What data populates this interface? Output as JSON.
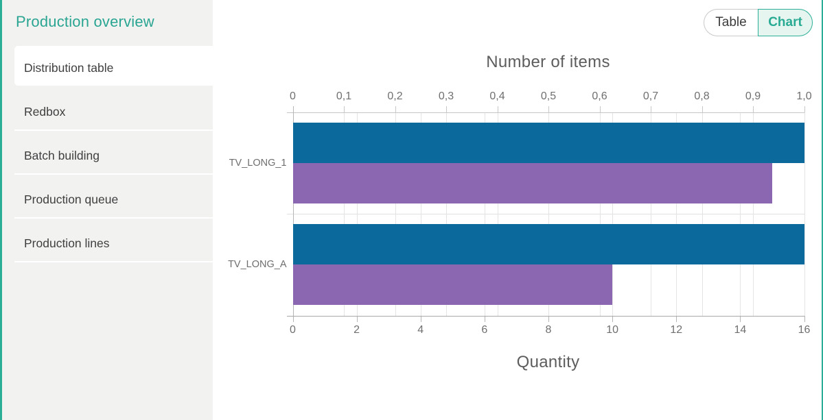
{
  "sidebar": {
    "title": "Production overview",
    "items": [
      {
        "label": "Distribution table",
        "selected": true
      },
      {
        "label": "Redbox",
        "selected": false
      },
      {
        "label": "Batch building",
        "selected": false
      },
      {
        "label": "Production queue",
        "selected": false
      },
      {
        "label": "Production lines",
        "selected": false
      }
    ]
  },
  "view_toggle": {
    "options": [
      {
        "label": "Table",
        "active": false
      },
      {
        "label": "Chart",
        "active": true
      }
    ]
  },
  "chart_data": {
    "type": "bar",
    "orientation": "horizontal",
    "title": "Number of items",
    "xlabel": "Quantity",
    "categories": [
      "TV_LONG_1",
      "TV_LONG_A"
    ],
    "series": [
      {
        "axis": "top",
        "color": "#0b6a9b",
        "values": [
          1.0,
          1.0
        ]
      },
      {
        "axis": "bottom",
        "color": "#8b66b1",
        "values": [
          15,
          10
        ]
      }
    ],
    "axes": {
      "top": {
        "position": "top",
        "min": 0,
        "max": 1.0,
        "tick_labels": [
          "0",
          "0,1",
          "0,2",
          "0,3",
          "0,4",
          "0,5",
          "0,6",
          "0,7",
          "0,8",
          "0,9",
          "1,0"
        ]
      },
      "bottom": {
        "position": "bottom",
        "min": 0,
        "max": 16,
        "tick_labels": [
          "0",
          "2",
          "4",
          "6",
          "8",
          "10",
          "12",
          "14",
          "16"
        ]
      }
    },
    "grid": true,
    "legend": false
  },
  "colors": {
    "accent": "#2aae96",
    "sidebar_bg": "#f2f2f1",
    "chart_blue": "#0b6a9b",
    "chart_purple": "#8b66b1"
  }
}
